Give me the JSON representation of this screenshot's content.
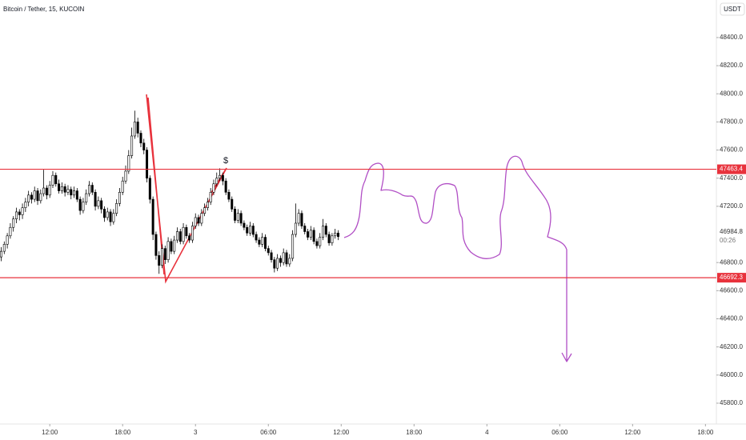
{
  "chart_data": {
    "type": "candlestick",
    "title": "Bitcoin / Tether, 15, KUCOIN",
    "currency": "USDT",
    "countdown": "00:26",
    "annotation": "$",
    "up_color": "#ffffff",
    "down_color": "#000000",
    "level_color": "#e8323c",
    "xlim": [
      7.9,
      66.9
    ],
    "ylim": [
      45652,
      48667
    ],
    "xticks": [
      {
        "value": 12,
        "label": "12:00"
      },
      {
        "value": 18,
        "label": "18:00"
      },
      {
        "value": 24,
        "label": "3"
      },
      {
        "value": 30,
        "label": "06:00"
      },
      {
        "value": 36,
        "label": "12:00"
      },
      {
        "value": 42,
        "label": "18:00"
      },
      {
        "value": 48,
        "label": "4"
      },
      {
        "value": 54,
        "label": "06:00"
      },
      {
        "value": 60,
        "label": "12:00"
      },
      {
        "value": 66,
        "label": "18:00"
      }
    ],
    "yticks": [
      {
        "value": 48400,
        "label": "48400.0"
      },
      {
        "value": 48200,
        "label": "48200.0"
      },
      {
        "value": 48000,
        "label": "48000.0"
      },
      {
        "value": 47800,
        "label": "47800.0"
      },
      {
        "value": 47600,
        "label": "47600.0"
      },
      {
        "value": 47400,
        "label": "47400.0"
      },
      {
        "value": 47200,
        "label": "47200.0"
      },
      {
        "value": 46800,
        "label": "46800.0"
      },
      {
        "value": 46600,
        "label": "46600.0"
      },
      {
        "value": 46400,
        "label": "46400.0"
      },
      {
        "value": 46200,
        "label": "46200.0"
      },
      {
        "value": 46000,
        "label": "46000.0"
      },
      {
        "value": 45800,
        "label": "45800.0"
      }
    ],
    "price_lines": [
      47463.4,
      46692.3
    ],
    "x": [
      8,
      8.25,
      8.5,
      8.75,
      9,
      9.25,
      9.5,
      9.75,
      10,
      10.25,
      10.5,
      10.75,
      11,
      11.25,
      11.5,
      11.75,
      12,
      12.25,
      12.5,
      12.75,
      13,
      13.25,
      13.5,
      13.75,
      14,
      14.25,
      14.5,
      14.75,
      15,
      15.25,
      15.5,
      15.75,
      16,
      16.25,
      16.5,
      16.75,
      17,
      17.25,
      17.5,
      17.75,
      18,
      18.25,
      18.5,
      18.75,
      19,
      19.25,
      19.5,
      19.75,
      20,
      20.25,
      20.5,
      20.75,
      21,
      21.25,
      21.5,
      21.75,
      22,
      22.25,
      22.5,
      22.75,
      23,
      23.25,
      23.5,
      23.75,
      24,
      24.25,
      24.5,
      24.75,
      25,
      25.25,
      25.5,
      25.75,
      26,
      26.25,
      26.5,
      26.75,
      27,
      27.25,
      27.5,
      27.75,
      28,
      28.25,
      28.5,
      28.75,
      29,
      29.25,
      29.5,
      29.75,
      30,
      30.25,
      30.5,
      30.75,
      31,
      31.25,
      31.5,
      31.75,
      32,
      32.25,
      32.5,
      32.75,
      33,
      33.25,
      33.5,
      33.75,
      34,
      34.25,
      34.5,
      34.75,
      35,
      35.25,
      35.5,
      35.75
    ],
    "ohlc": [
      [
        46840,
        46910,
        46810,
        46880
      ],
      [
        46880,
        46950,
        46860,
        46930
      ],
      [
        46930,
        47010,
        46900,
        46990
      ],
      [
        46990,
        47080,
        46970,
        47050
      ],
      [
        47050,
        47130,
        47020,
        47110
      ],
      [
        47110,
        47190,
        47080,
        47160
      ],
      [
        47160,
        47180,
        47100,
        47140
      ],
      [
        47140,
        47220,
        47110,
        47190
      ],
      [
        47190,
        47260,
        47160,
        47230
      ],
      [
        47230,
        47310,
        47200,
        47280
      ],
      [
        47280,
        47300,
        47220,
        47250
      ],
      [
        47250,
        47340,
        47230,
        47310
      ],
      [
        47310,
        47330,
        47210,
        47240
      ],
      [
        47240,
        47320,
        47220,
        47290
      ],
      [
        47290,
        47460,
        47270,
        47330
      ],
      [
        47330,
        47350,
        47250,
        47280
      ],
      [
        47280,
        47380,
        47260,
        47350
      ],
      [
        47350,
        47450,
        47330,
        47420
      ],
      [
        47420,
        47440,
        47340,
        47360
      ],
      [
        47360,
        47390,
        47290,
        47310
      ],
      [
        47310,
        47370,
        47290,
        47340
      ],
      [
        47340,
        47360,
        47270,
        47300
      ],
      [
        47300,
        47350,
        47280,
        47320
      ],
      [
        47320,
        47340,
        47250,
        47280
      ],
      [
        47280,
        47340,
        47260,
        47310
      ],
      [
        47310,
        47330,
        47230,
        47250
      ],
      [
        47250,
        47270,
        47140,
        47170
      ],
      [
        47170,
        47260,
        47150,
        47230
      ],
      [
        47230,
        47320,
        47210,
        47290
      ],
      [
        47290,
        47380,
        47270,
        47350
      ],
      [
        47350,
        47370,
        47280,
        47300
      ],
      [
        47300,
        47320,
        47170,
        47200
      ],
      [
        47200,
        47270,
        47180,
        47240
      ],
      [
        47240,
        47260,
        47150,
        47180
      ],
      [
        47180,
        47200,
        47090,
        47120
      ],
      [
        47120,
        47190,
        47100,
        47160
      ],
      [
        47160,
        47180,
        47060,
        47090
      ],
      [
        47090,
        47180,
        47070,
        47150
      ],
      [
        47150,
        47250,
        47130,
        47220
      ],
      [
        47220,
        47330,
        47200,
        47300
      ],
      [
        47300,
        47410,
        47280,
        47380
      ],
      [
        47380,
        47490,
        47360,
        47450
      ],
      [
        47450,
        47600,
        47430,
        47560
      ],
      [
        47560,
        47760,
        47540,
        47700
      ],
      [
        47700,
        47880,
        47680,
        47800
      ],
      [
        47800,
        47830,
        47690,
        47720
      ],
      [
        47720,
        47740,
        47620,
        47650
      ],
      [
        47650,
        47680,
        47570,
        47600
      ],
      [
        47600,
        47620,
        47370,
        47400
      ],
      [
        47400,
        47420,
        47220,
        47250
      ],
      [
        47250,
        47270,
        46960,
        47000
      ],
      [
        47000,
        47020,
        46820,
        46850
      ],
      [
        46850,
        46880,
        46720,
        46780
      ],
      [
        46780,
        46930,
        46760,
        46900
      ],
      [
        46900,
        46920,
        46790,
        46820
      ],
      [
        46820,
        46980,
        46800,
        46950
      ],
      [
        46950,
        46970,
        46860,
        46880
      ],
      [
        46880,
        46990,
        46860,
        46960
      ],
      [
        46960,
        47050,
        46940,
        47020
      ],
      [
        47020,
        47040,
        46930,
        46950
      ],
      [
        46950,
        47080,
        46930,
        47050
      ],
      [
        47050,
        47070,
        46970,
        46990
      ],
      [
        46990,
        47010,
        46940,
        46960
      ],
      [
        46960,
        47090,
        46940,
        47060
      ],
      [
        47060,
        47150,
        47040,
        47120
      ],
      [
        47120,
        47140,
        47060,
        47080
      ],
      [
        47080,
        47180,
        47060,
        47150
      ],
      [
        47150,
        47220,
        47130,
        47190
      ],
      [
        47190,
        47260,
        47170,
        47230
      ],
      [
        47230,
        47330,
        47210,
        47300
      ],
      [
        47300,
        47390,
        47280,
        47360
      ],
      [
        47360,
        47440,
        47340,
        47400
      ],
      [
        47400,
        47470,
        47380,
        47420
      ],
      [
        47420,
        47440,
        47350,
        47380
      ],
      [
        47380,
        47400,
        47280,
        47300
      ],
      [
        47300,
        47320,
        47230,
        47250
      ],
      [
        47250,
        47270,
        47160,
        47180
      ],
      [
        47180,
        47200,
        47080,
        47100
      ],
      [
        47100,
        47180,
        47080,
        47150
      ],
      [
        47150,
        47170,
        47060,
        47080
      ],
      [
        47080,
        47100,
        47030,
        47050
      ],
      [
        47050,
        47070,
        46990,
        47010
      ],
      [
        47010,
        47090,
        46990,
        47060
      ],
      [
        47060,
        47080,
        46980,
        47000
      ],
      [
        47000,
        47020,
        46940,
        46960
      ],
      [
        46960,
        46980,
        46910,
        46930
      ],
      [
        46930,
        47010,
        46910,
        46980
      ],
      [
        46980,
        47000,
        46880,
        46900
      ],
      [
        46900,
        46920,
        46850,
        46870
      ],
      [
        46870,
        46890,
        46800,
        46820
      ],
      [
        46820,
        46840,
        46730,
        46760
      ],
      [
        46760,
        46860,
        46740,
        46830
      ],
      [
        46830,
        46850,
        46770,
        46800
      ],
      [
        46800,
        46900,
        46780,
        46870
      ],
      [
        46870,
        46890,
        46770,
        46790
      ],
      [
        46790,
        46860,
        46770,
        46830
      ],
      [
        46830,
        47030,
        46810,
        47000
      ],
      [
        47000,
        47220,
        46980,
        47080
      ],
      [
        47080,
        47180,
        47060,
        47150
      ],
      [
        47150,
        47170,
        47040,
        47060
      ],
      [
        47060,
        47080,
        47000,
        47020
      ],
      [
        47020,
        47040,
        46960,
        46980
      ],
      [
        46980,
        47060,
        46960,
        47030
      ],
      [
        47030,
        47050,
        46930,
        46950
      ],
      [
        46950,
        46970,
        46900,
        46920
      ],
      [
        46920,
        47010,
        46900,
        46980
      ],
      [
        46980,
        47110,
        46960,
        47060
      ],
      [
        47060,
        47080,
        46980,
        47000
      ],
      [
        47000,
        47020,
        46920,
        46940
      ],
      [
        46940,
        47010,
        46920,
        46990
      ],
      [
        46990,
        47040,
        46970,
        47010
      ],
      [
        47010,
        47030,
        46960,
        46984.8
      ]
    ]
  }
}
